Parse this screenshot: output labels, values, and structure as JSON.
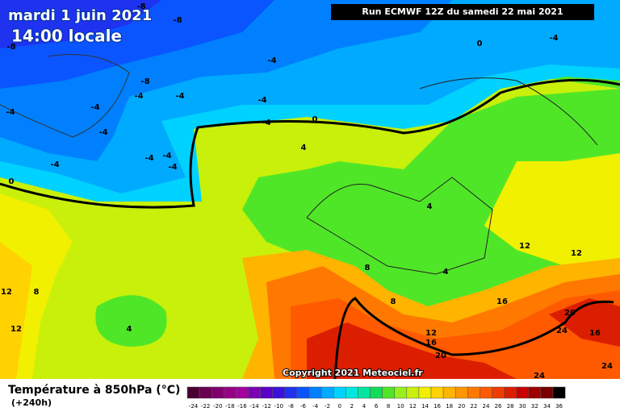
{
  "header": {
    "date": "mardi 1 juin 2021",
    "time": "14:00 locale",
    "run": "Run ECMWF 12Z du samedi 22 mai 2021"
  },
  "map": {
    "contour_labels": [
      -8,
      -8,
      -8,
      -4,
      -8,
      -4,
      -4,
      -4,
      -4,
      -4,
      -4,
      0,
      -4,
      -4,
      -4,
      -4,
      -4,
      0,
      4,
      0,
      -4,
      4,
      12,
      12,
      8,
      4,
      12,
      8,
      8,
      16,
      20,
      4,
      12,
      12,
      16,
      24,
      16,
      20,
      24,
      24
    ],
    "copyright": "Copyright 2021 Meteociel.fr"
  },
  "footer": {
    "title": "Température à 850hPa (°C)",
    "subtitle": "(+240h)"
  },
  "legend": {
    "labels": [
      -24,
      -22,
      -20,
      -18,
      -16,
      -14,
      -12,
      -10,
      -8,
      -6,
      -4,
      -2,
      0,
      2,
      4,
      6,
      8,
      10,
      12,
      14,
      16,
      18,
      20,
      22,
      24,
      26,
      28,
      30,
      32,
      34,
      36
    ],
    "colors": [
      "#4b0033",
      "#6a0050",
      "#80006b",
      "#960084",
      "#a3009e",
      "#7d00b4",
      "#5a00c8",
      "#3b12dc",
      "#1e32f0",
      "#0a55ff",
      "#0080ff",
      "#00aaff",
      "#00d2ff",
      "#00e6e0",
      "#00e6a0",
      "#10dc5a",
      "#50e628",
      "#96f01e",
      "#c8f00a",
      "#f0f000",
      "#ffd200",
      "#ffb400",
      "#ff9600",
      "#ff7800",
      "#ff5a00",
      "#f03c00",
      "#dc1e00",
      "#c80000",
      "#a00000",
      "#780000",
      "#000000"
    ]
  }
}
